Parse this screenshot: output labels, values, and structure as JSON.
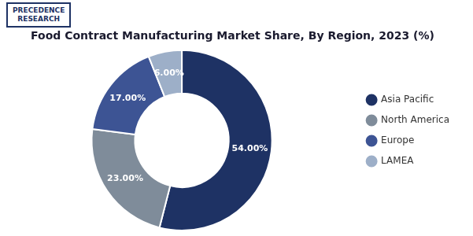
{
  "chart_data": {
    "type": "doughnut",
    "title": "Food Contract Manufacturing Market Share, By Region, 2023 (%)",
    "categories": [
      "Asia Pacific",
      "North America",
      "Europe",
      "LAMEA"
    ],
    "values": [
      54.0,
      23.0,
      17.0,
      6.0
    ],
    "value_labels": [
      "54.00%",
      "23.00%",
      "17.00%",
      "6.00%"
    ],
    "data_labels": true,
    "colors": [
      "#1e3264",
      "#7f8c9a",
      "#3d5494",
      "#9dafc8"
    ],
    "legend": "right",
    "annotations": [
      "PRECEDENCE\nRESEARCH"
    ]
  }
}
